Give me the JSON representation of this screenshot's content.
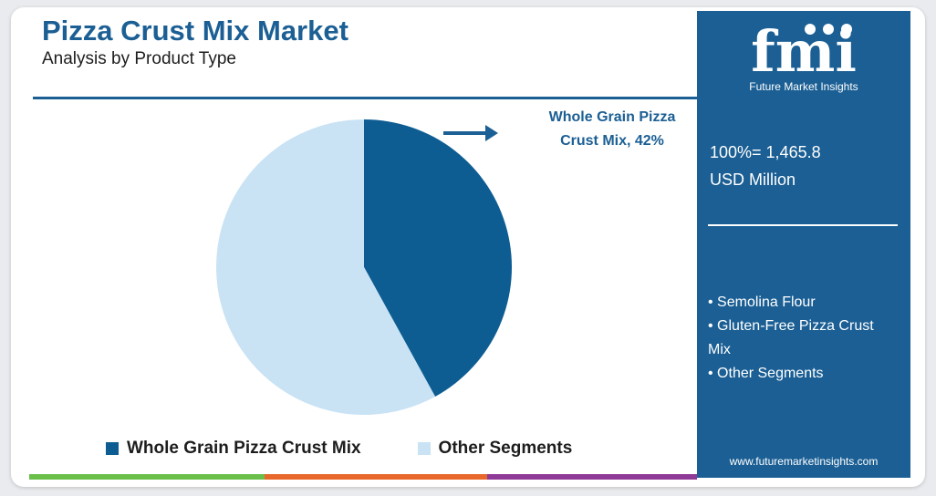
{
  "header": {
    "title": "Pizza Crust Mix Market",
    "subtitle": "Analysis by Product Type"
  },
  "callout": {
    "line1": "Whole Grain Pizza",
    "line2": "Crust Mix, 42%"
  },
  "chart_data": {
    "type": "pie",
    "title": "Pizza Crust Mix Market",
    "subtitle": "Analysis by Product Type",
    "categories": [
      "Whole Grain Pizza Crust Mix",
      "Other Segments"
    ],
    "values": [
      42,
      58
    ],
    "unit": "%",
    "colors": [
      "#0d5d93",
      "#c9e3f5"
    ],
    "annotations": [
      "Whole Grain Pizza Crust Mix, 42%"
    ],
    "legend": "bottom"
  },
  "legend": [
    {
      "label": "Whole Grain Pizza Crust Mix",
      "color": "#0d5d93"
    },
    {
      "label": "Other Segments",
      "color": "#c9e3f5"
    }
  ],
  "sidebar": {
    "logo_text": "fmi",
    "logo_subtitle": "Future Market Insights",
    "total_line1": "100%= 1,465.8",
    "total_line2": "USD Million",
    "bullets": [
      "• Semolina Flour",
      "• Gluten-Free Pizza Crust Mix",
      "• Other Segments"
    ],
    "website": "www.futuremarketinsights.com"
  },
  "colors": {
    "brand_blue": "#1b5f94",
    "pie_dark": "#0d5d93",
    "pie_light": "#c9e3f5",
    "bar_green": "#6abf4b",
    "bar_orange": "#e8682c",
    "bar_purple": "#8e3a96"
  }
}
